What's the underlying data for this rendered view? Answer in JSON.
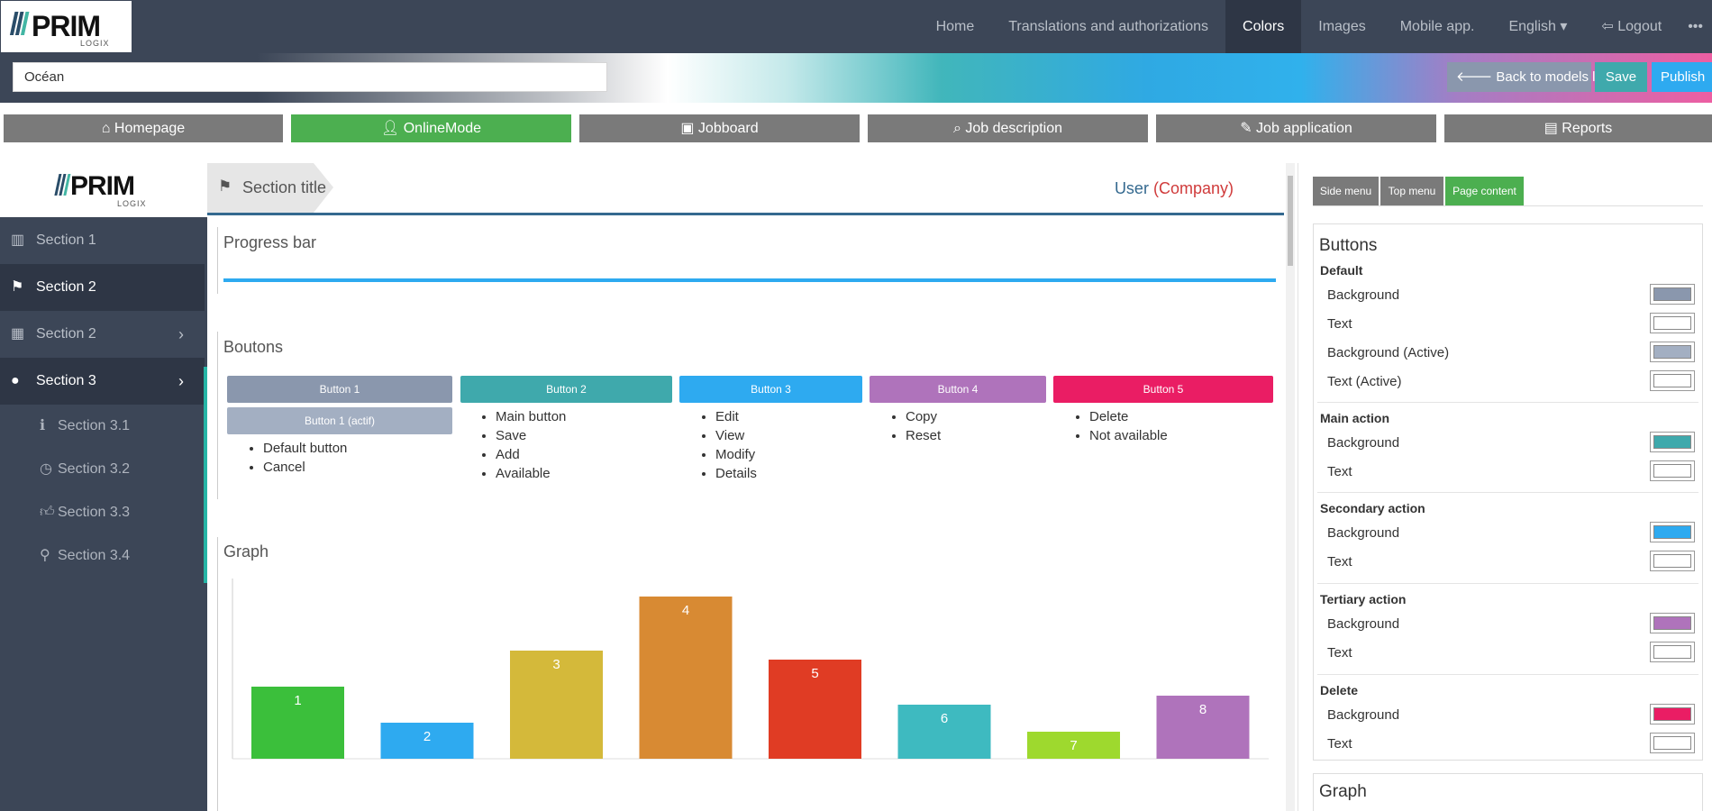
{
  "logo": {
    "text": "PRIM",
    "sub": "LOGIX"
  },
  "nav": [
    "Home",
    "Translations and authorizations",
    "Colors",
    "Images",
    "Mobile app.",
    "English ▾",
    "Logout",
    "•••"
  ],
  "model": {
    "name": "Océan",
    "back": "Back to models list",
    "save": "Save",
    "publish": "Publish"
  },
  "modes": [
    "Homepage",
    "OnlineMode",
    "Jobboard",
    "Job description",
    "Job application",
    "Reports"
  ],
  "sidebar": {
    "items": [
      "Section 1",
      "Section 2",
      "Section 2",
      "Section 3"
    ],
    "subitems": [
      "Section 3.1",
      "Section 3.2",
      "Section 3.3",
      "Section 3.4"
    ]
  },
  "header": {
    "section_title": "Section title",
    "user": "User",
    "company": "(Company)"
  },
  "progress": {
    "title": "Progress bar",
    "value": 1.0
  },
  "buttons_panel": {
    "title": "Boutons",
    "buttons": [
      "Button 1",
      "Button 1 (actif)",
      "Button 2",
      "Button 3",
      "Button 4",
      "Button 5"
    ],
    "lists": [
      [
        "Default button",
        "Cancel"
      ],
      [
        "Main button",
        "Save",
        "Add",
        "Available"
      ],
      [
        "Edit",
        "View",
        "Modify",
        "Details"
      ],
      [
        "Copy",
        "Reset"
      ],
      [
        "Delete",
        "Not available"
      ]
    ]
  },
  "graph_title": "Graph",
  "chart_data": {
    "type": "bar",
    "categories": [
      "1",
      "2",
      "3",
      "4",
      "5",
      "6",
      "7",
      "8"
    ],
    "values": [
      4,
      2,
      6,
      9,
      5.5,
      3,
      1.5,
      3.5
    ],
    "data_labels": [
      "1",
      "2",
      "3",
      "4",
      "5",
      "6",
      "7",
      "8"
    ],
    "colors": [
      "#3bbf3b",
      "#2eaaf0",
      "#d4b93a",
      "#d88a33",
      "#e03c24",
      "#3ebac0",
      "#9ed92e",
      "#af73bb"
    ],
    "ylim": [
      0,
      10
    ],
    "grid": false
  },
  "right": {
    "tabs": [
      "Side menu",
      "Top menu",
      "Page content"
    ],
    "title": "Buttons",
    "groups": [
      {
        "name": "Default",
        "rows": [
          {
            "label": "Background",
            "color": "#8a97ad"
          },
          {
            "label": "Text",
            "color": "#ffffff"
          },
          {
            "label": "Background (Active)",
            "color": "#a3afc2"
          },
          {
            "label": "Text (Active)",
            "color": "#ffffff"
          }
        ]
      },
      {
        "name": "Main action",
        "rows": [
          {
            "label": "Background",
            "color": "#3fa9ac"
          },
          {
            "label": "Text",
            "color": "#ffffff"
          }
        ]
      },
      {
        "name": "Secondary action",
        "rows": [
          {
            "label": "Background",
            "color": "#2eaaf0"
          },
          {
            "label": "Text",
            "color": "#ffffff"
          }
        ]
      },
      {
        "name": "Tertiary action",
        "rows": [
          {
            "label": "Background",
            "color": "#af73bb"
          },
          {
            "label": "Text",
            "color": "#ffffff"
          }
        ]
      },
      {
        "name": "Delete",
        "rows": [
          {
            "label": "Background",
            "color": "#ea1d64"
          },
          {
            "label": "Text",
            "color": "#ffffff"
          }
        ]
      }
    ],
    "next_title": "Graph"
  },
  "colors": {
    "nav_bg": "#3c4657",
    "button1": "#8a97ad",
    "button1_active": "#a3afc2",
    "button2": "#3fa9ac",
    "button3": "#2eaaf0",
    "button4": "#af73bb",
    "button5": "#ea1d64",
    "mode_active": "#4caf50",
    "progress": "#2eaaf0"
  }
}
